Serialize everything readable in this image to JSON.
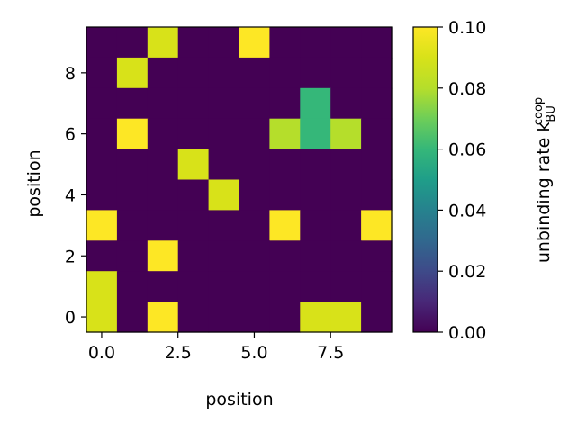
{
  "chart_data": {
    "type": "heatmap",
    "title": "",
    "xlabel": "position",
    "ylabel": "position",
    "x_ticks": [
      0.0,
      2.5,
      5.0,
      7.5
    ],
    "x_tick_labels": [
      "0.0",
      "2.5",
      "5.0",
      "7.5"
    ],
    "y_ticks": [
      0,
      2,
      4,
      6,
      8
    ],
    "y_tick_labels": [
      "0",
      "2",
      "4",
      "6",
      "8"
    ],
    "xlim": [
      -0.5,
      9.5
    ],
    "ylim": [
      9.5,
      -0.5
    ],
    "colormap": "viridis",
    "colorbar": {
      "label": "unbinding rate k_BU^coop",
      "label_main": "unbinding rate k",
      "label_sub": "BU",
      "label_sup": "coop",
      "vmin": 0.0,
      "vmax": 0.1,
      "ticks": [
        0.0,
        0.02,
        0.04,
        0.06,
        0.08,
        0.1
      ],
      "tick_labels": [
        "0.00",
        "0.02",
        "0.04",
        "0.06",
        "0.08",
        "0.10"
      ]
    },
    "values": [
      [
        0.0,
        0.0,
        0.09,
        0.0,
        0.0,
        0.1,
        0.0,
        0.0,
        0.0,
        0.0
      ],
      [
        0.0,
        0.09,
        0.0,
        0.0,
        0.0,
        0.0,
        0.0,
        0.0,
        0.0,
        0.0
      ],
      [
        0.0,
        0.0,
        0.0,
        0.0,
        0.0,
        0.0,
        0.0,
        0.06,
        0.0,
        0.0
      ],
      [
        0.0,
        0.1,
        0.0,
        0.0,
        0.0,
        0.0,
        0.08,
        0.06,
        0.08,
        0.0
      ],
      [
        0.0,
        0.0,
        0.0,
        0.09,
        0.0,
        0.0,
        0.0,
        0.0,
        0.0,
        0.0
      ],
      [
        0.0,
        0.0,
        0.0,
        0.0,
        0.09,
        0.0,
        0.0,
        0.0,
        0.0,
        0.0
      ],
      [
        0.1,
        0.0,
        0.0,
        0.0,
        0.0,
        0.0,
        0.1,
        0.0,
        0.0,
        0.1
      ],
      [
        0.0,
        0.0,
        0.1,
        0.0,
        0.0,
        0.0,
        0.0,
        0.0,
        0.0,
        0.0
      ],
      [
        0.09,
        0.0,
        0.0,
        0.0,
        0.0,
        0.0,
        0.0,
        0.0,
        0.0,
        0.0
      ],
      [
        0.09,
        0.0,
        0.1,
        0.0,
        0.0,
        0.0,
        0.0,
        0.09,
        0.09,
        0.0
      ]
    ]
  }
}
